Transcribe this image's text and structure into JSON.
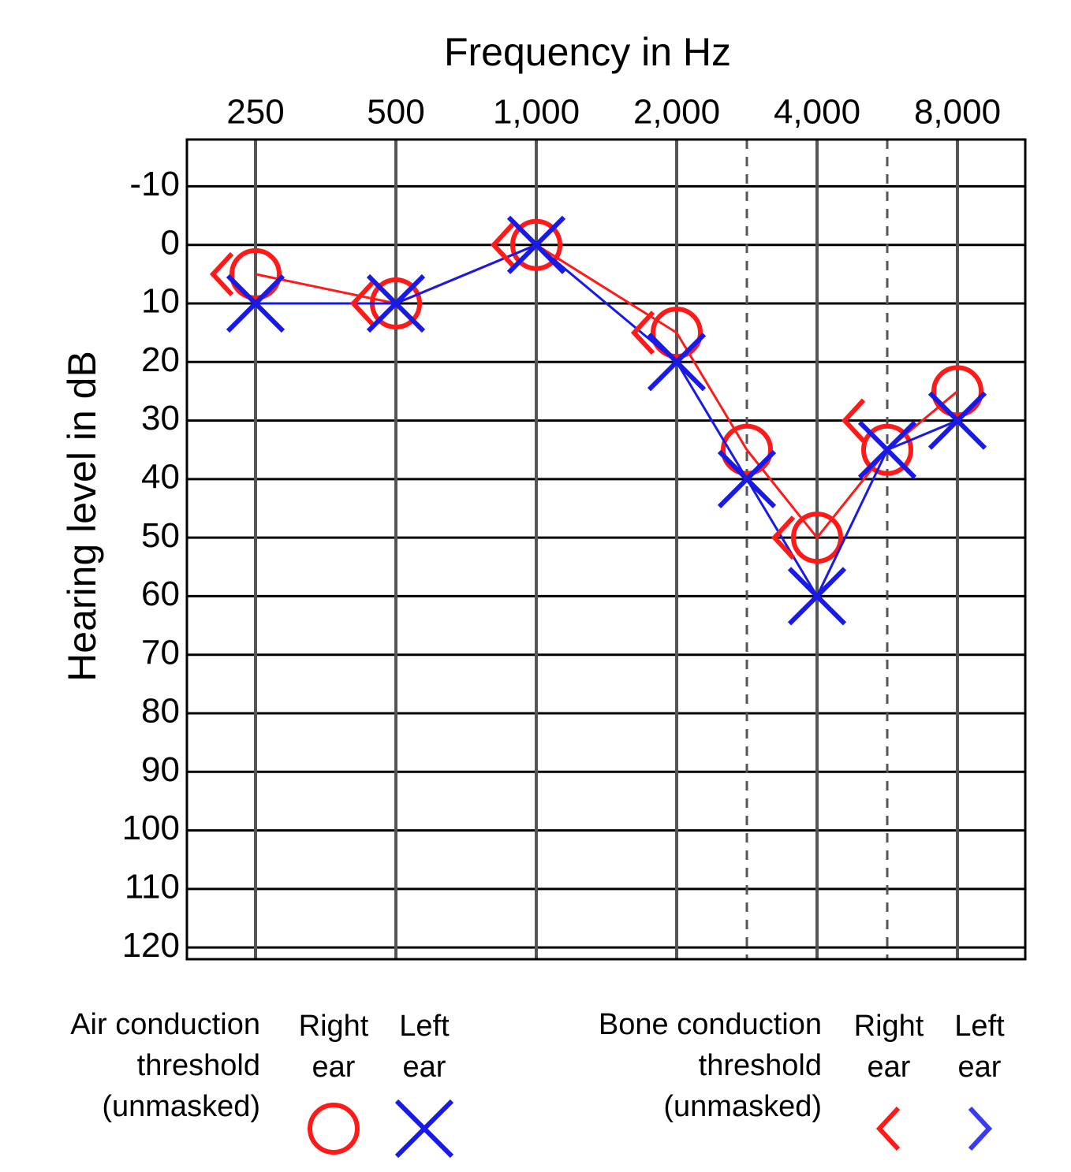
{
  "chart_data": {
    "type": "audiogram",
    "x_label": "Frequency in Hz",
    "y_label": "Hearing level in dB",
    "categories": [
      "250",
      "500",
      "1,000",
      "2,000",
      null,
      "4,000",
      null,
      "8,000"
    ],
    "ylim": [
      -18,
      122
    ],
    "y_inverted": true,
    "yticks": [
      -10,
      0,
      10,
      20,
      30,
      40,
      50,
      60,
      70,
      80,
      90,
      100,
      110,
      120
    ],
    "grid": true,
    "legend_groups": [
      {
        "title": [
          "Air conduction",
          "threshold",
          "(unmasked)"
        ]
      },
      {
        "title": [
          "Bone conduction",
          "threshold",
          "(unmasked)"
        ]
      }
    ],
    "series": [
      {
        "name": "Right ear",
        "color": "#ff1a1a",
        "marker": "circle",
        "line": true,
        "values": [
          5,
          10,
          0,
          15,
          35,
          50,
          35,
          25
        ]
      },
      {
        "name": "Left ear",
        "color": "#1a1ae6",
        "marker": "x",
        "line": true,
        "values": [
          10,
          10,
          0,
          20,
          40,
          60,
          35,
          30
        ]
      },
      {
        "name": "Right ear",
        "color": "#ff1a1a",
        "marker": "<",
        "line": false,
        "values": [
          5,
          10,
          0,
          15,
          null,
          50,
          30,
          null
        ]
      },
      {
        "name": "Left ear",
        "color": "#3a3af0",
        "marker": ">",
        "line": false,
        "values": [
          null,
          null,
          null,
          null,
          null,
          null,
          null,
          null
        ]
      }
    ]
  }
}
